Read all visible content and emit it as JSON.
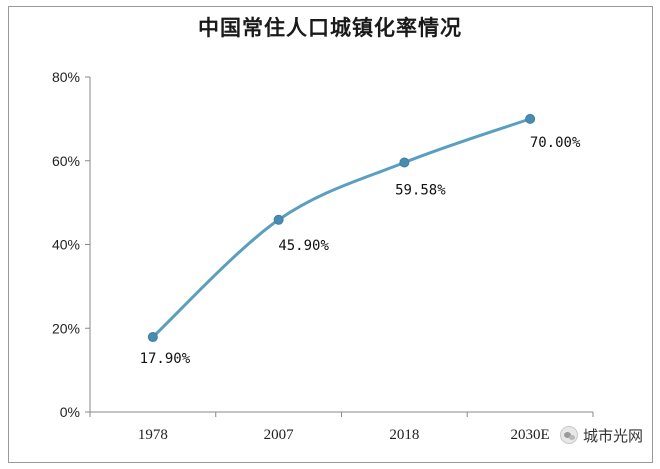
{
  "chart_data": {
    "type": "line",
    "title": "中国常住人口城镇化率情况",
    "categories": [
      "1978",
      "2007",
      "2018",
      "2030E"
    ],
    "values": [
      17.9,
      45.9,
      59.58,
      70.0
    ],
    "data_labels": [
      "17.90%",
      "45.90%",
      "59.58%",
      "70.00%"
    ],
    "y_ticks": [
      "0%",
      "20%",
      "40%",
      "60%",
      "80%"
    ],
    "ylim": [
      0,
      80
    ],
    "grid": false,
    "legend": "none",
    "line_color": "#5b9fc0",
    "marker_color": "#4a8bb0"
  },
  "watermark": {
    "icon": "wechat-icon",
    "text": "城市光网"
  }
}
